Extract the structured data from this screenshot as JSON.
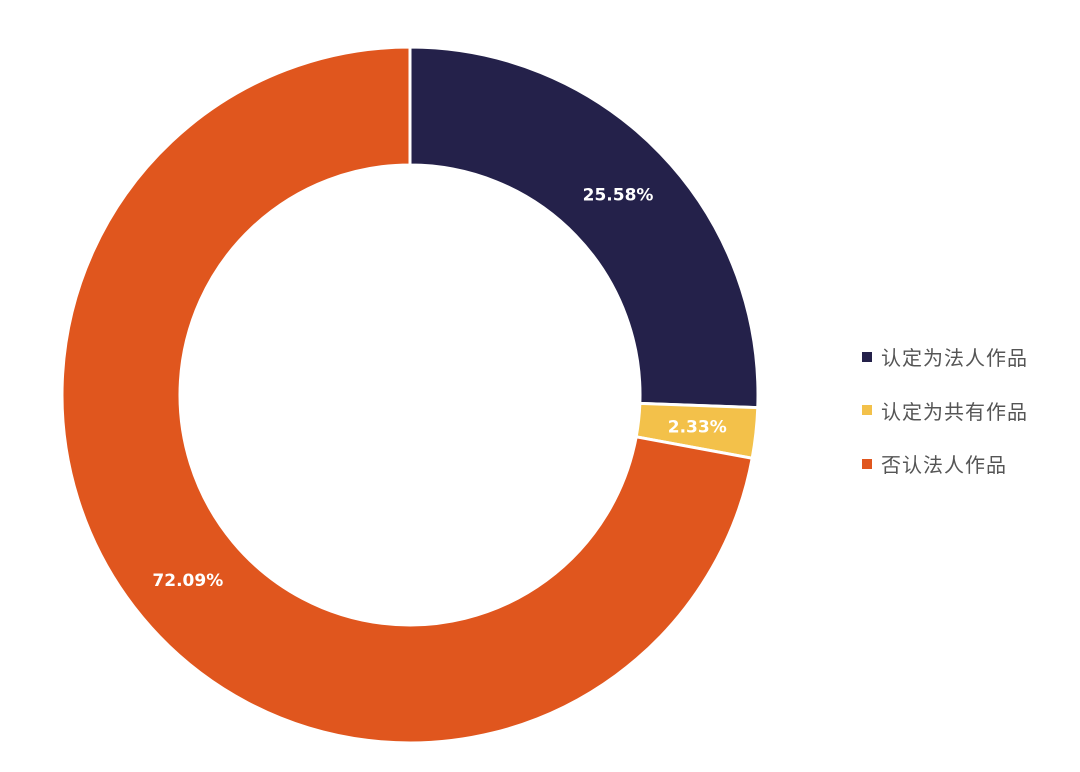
{
  "chart_data": {
    "type": "pie",
    "variant": "donut",
    "title": "",
    "categories": [
      "认定为法人作品",
      "认定为共有作品",
      "否认法人作品"
    ],
    "values": [
      25.58,
      2.33,
      72.09
    ],
    "labels": [
      "25.58%",
      "2.33%",
      "72.09%"
    ],
    "colors": [
      "#24214a",
      "#f3c14a",
      "#e0561e"
    ],
    "legend_position": "right",
    "start_angle": "top",
    "direction": "clockwise"
  }
}
